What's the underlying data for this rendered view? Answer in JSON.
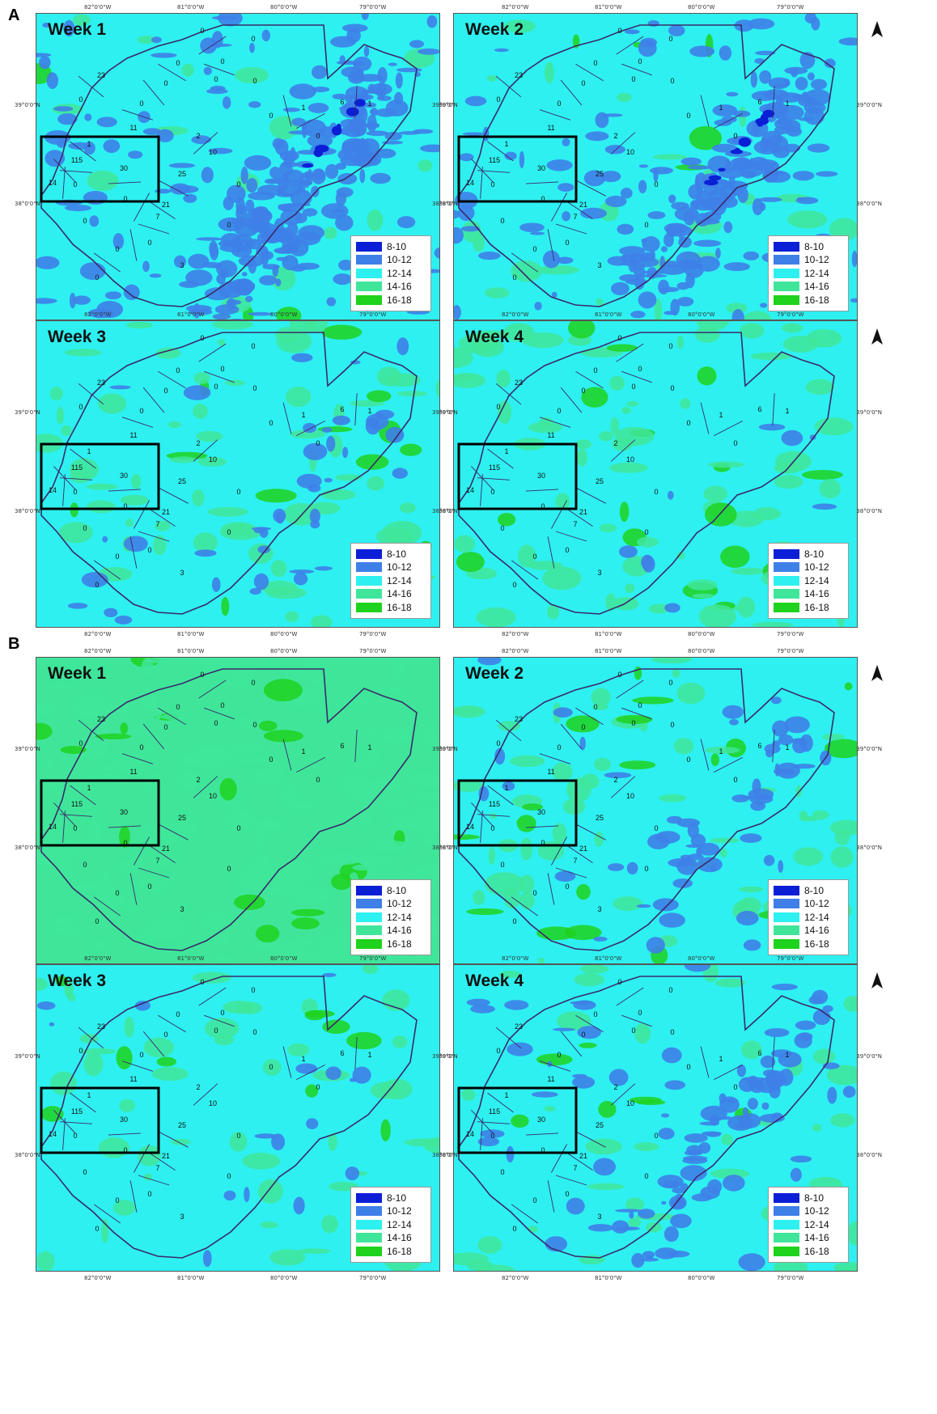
{
  "sections": [
    {
      "letter": "A",
      "panels": [
        {
          "title": "Week 1",
          "base": "#2ef0f0",
          "dark": "#3e7fe8",
          "darkAmount": 0.55,
          "greenAmount": 0.08
        },
        {
          "title": "Week 2",
          "base": "#2ef0f0",
          "dark": "#3e7fe8",
          "darkAmount": 0.42,
          "greenAmount": 0.12
        },
        {
          "title": "Week 3",
          "base": "#2ef0f0",
          "dark": "#3e7fe8",
          "darkAmount": 0.08,
          "greenAmount": 0.3
        },
        {
          "title": "Week 4",
          "base": "#2ef0f0",
          "dark": "#3e7fe8",
          "darkAmount": 0.02,
          "greenAmount": 0.35
        }
      ]
    },
    {
      "letter": "B",
      "panels": [
        {
          "title": "Week 1",
          "base": "#3fe69a",
          "dark": "#3e7fe8",
          "darkAmount": 0.0,
          "greenAmount": 0.6
        },
        {
          "title": "Week 2",
          "base": "#2ef0f0",
          "dark": "#3e7fe8",
          "darkAmount": 0.12,
          "greenAmount": 0.3
        },
        {
          "title": "Week 3",
          "base": "#2ef0f0",
          "dark": "#3e7fe8",
          "darkAmount": 0.03,
          "greenAmount": 0.22
        },
        {
          "title": "Week 4",
          "base": "#2ef0f0",
          "dark": "#3e7fe8",
          "darkAmount": 0.2,
          "greenAmount": 0.18
        }
      ]
    }
  ],
  "legend": [
    {
      "label": "8-10",
      "color": "#0a1fd6"
    },
    {
      "label": "10-12",
      "color": "#3e7fe8"
    },
    {
      "label": "12-14",
      "color": "#2ef0f0"
    },
    {
      "label": "14-16",
      "color": "#3fe69a"
    },
    {
      "label": "16-18",
      "color": "#1ed21e"
    }
  ],
  "ticks": {
    "lon": [
      "82°0'0\"W",
      "81°0'0\"W",
      "80°0'0\"W",
      "79°0'0\"W"
    ],
    "lat": [
      "39°0'0\"N",
      "38°0'0\"N"
    ]
  },
  "county_values": [
    "0",
    "0",
    "0",
    "0",
    "23",
    "0",
    "0",
    "0",
    "0",
    "0",
    "11",
    "1",
    "115",
    "30",
    "14",
    "0",
    "2",
    "10",
    "25",
    "0",
    "0",
    "1",
    "0",
    "7",
    "0",
    "3",
    "0",
    "21",
    "0",
    "0",
    "6",
    "1",
    "0",
    "0"
  ],
  "colors": {
    "green_patch": "#3fe69a",
    "bright_green": "#1ed21e",
    "border": "#3a2a6a"
  }
}
